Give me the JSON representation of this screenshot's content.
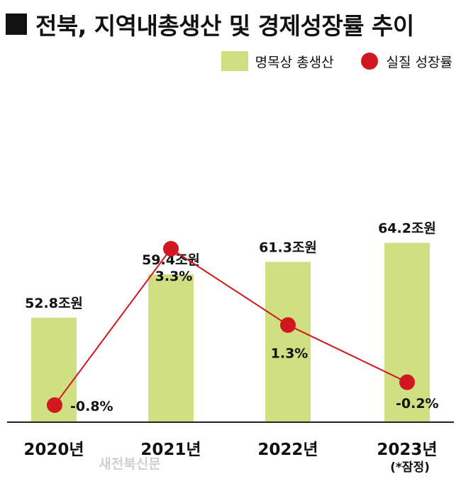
{
  "title": "전북, 지역내총생산 및 경제성장률 추이",
  "legend": {
    "bar_label": "명목상 총생산",
    "line_label": "실질 성장률"
  },
  "colors": {
    "bar": "#cfdf82",
    "line": "#d01820",
    "axis": "#222222"
  },
  "watermark": "새전북신문",
  "chart_data": {
    "type": "bar",
    "categories": [
      "2020년",
      "2021년",
      "2022년",
      "2023년"
    ],
    "category_notes": [
      "",
      "",
      "",
      "(*잠정)"
    ],
    "series": [
      {
        "name": "명목상 총생산",
        "type": "bar",
        "values": [
          52.8,
          59.4,
          61.3,
          64.2
        ],
        "labels": [
          "52.8조원",
          "59.4조원",
          "61.3조원",
          "64.2조원"
        ]
      },
      {
        "name": "실질 성장률",
        "type": "line",
        "values": [
          -0.8,
          3.3,
          1.3,
          -0.2
        ],
        "labels": [
          "-0.8%",
          "3.3%",
          "1.3%",
          "-0.2%"
        ]
      }
    ],
    "grid": false,
    "legend_position": "top-right"
  }
}
